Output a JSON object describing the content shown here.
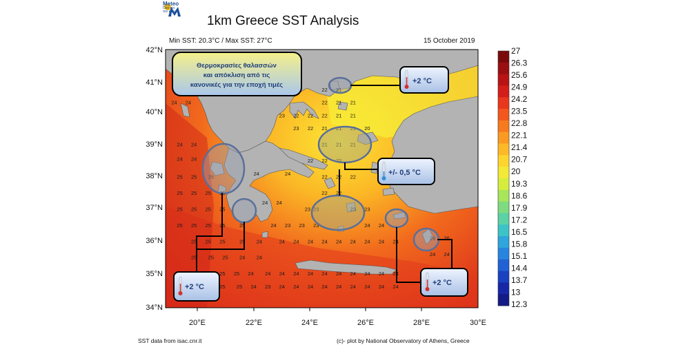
{
  "logo": {
    "name": "Meteo",
    "tagline_1": "Όλα για",
    "tagline_2": "τον καιρό"
  },
  "title": "1km Greece SST Analysis",
  "subtitle": "Min SST: 20.3°C / Max SST: 27°C",
  "date": "15 October 2019",
  "footer": {
    "source": "SST data from isac.cnr.it",
    "credit": "(c)- plot by National Observatory of Athens, Greece"
  },
  "axes": {
    "lat_labels": [
      "42°N",
      "41°N",
      "40°N",
      "39°N",
      "38°N",
      "37°N",
      "36°N",
      "35°N",
      "34°N"
    ],
    "lon_labels": [
      "20°E",
      "22°E",
      "24°E",
      "26°E",
      "28°E",
      "30°E"
    ]
  },
  "colorbar": {
    "labels": [
      "27",
      "26.3",
      "25.6",
      "24.9",
      "24.2",
      "23.5",
      "22.8",
      "22.1",
      "21.4",
      "20.7",
      "20",
      "19.3",
      "18.6",
      "17.9",
      "17.2",
      "16.5",
      "15.8",
      "15.1",
      "14.4",
      "13.7",
      "13",
      "12.3"
    ],
    "colors": [
      "#7a0b0b",
      "#9a1010",
      "#b81414",
      "#d31e1a",
      "#e8371c",
      "#f2581d",
      "#f77a1f",
      "#fb9a22",
      "#fdb927",
      "#fdd52e",
      "#f3e936",
      "#d5ee3e",
      "#a7e55a",
      "#7fdb80",
      "#5ad2a6",
      "#3cc3c8",
      "#2ea5dc",
      "#2785df",
      "#2062d4",
      "#1a42c0",
      "#1628a6",
      "#141a86"
    ]
  },
  "legend_box": {
    "line1": "Θερμοκρασίες θαλασσών",
    "line2": "και απόκλιση από τις",
    "line3": "κανονικές για την εποχή τιμές"
  },
  "callouts": [
    {
      "text": "+2 °C"
    },
    {
      "text": "+/- 0,5 °C"
    },
    {
      "text": "+2 °C"
    },
    {
      "text": "+2 °C"
    }
  ],
  "grid_values": [
    {
      "v": "24",
      "lat": 40.3,
      "lon": 19.3
    },
    {
      "v": "24",
      "lat": 40.3,
      "lon": 19.8
    },
    {
      "v": "24",
      "lat": 39.0,
      "lon": 19.5
    },
    {
      "v": "24",
      "lat": 39.0,
      "lon": 20.0
    },
    {
      "v": "24",
      "lat": 38.55,
      "lon": 19.5
    },
    {
      "v": "24",
      "lat": 38.55,
      "lon": 20.0
    },
    {
      "v": "25",
      "lat": 38.0,
      "lon": 19.5
    },
    {
      "v": "25",
      "lat": 38.0,
      "lon": 20.0
    },
    {
      "v": "25",
      "lat": 38.0,
      "lon": 20.6
    },
    {
      "v": "25",
      "lat": 37.5,
      "lon": 19.5
    },
    {
      "v": "25",
      "lat": 37.5,
      "lon": 20.0
    },
    {
      "v": "25",
      "lat": 37.5,
      "lon": 20.5
    },
    {
      "v": "25",
      "lat": 37.5,
      "lon": 21.0
    },
    {
      "v": "25",
      "lat": 37.0,
      "lon": 19.5
    },
    {
      "v": "25",
      "lat": 37.0,
      "lon": 20.0
    },
    {
      "v": "25",
      "lat": 37.0,
      "lon": 20.5
    },
    {
      "v": "25",
      "lat": 37.0,
      "lon": 21.0
    },
    {
      "v": "25",
      "lat": 36.5,
      "lon": 19.5
    },
    {
      "v": "25",
      "lat": 36.5,
      "lon": 20.0
    },
    {
      "v": "25",
      "lat": 36.5,
      "lon": 20.5
    },
    {
      "v": "25",
      "lat": 36.5,
      "lon": 21.0
    },
    {
      "v": "25",
      "lat": 36.5,
      "lon": 21.7
    },
    {
      "v": "25",
      "lat": 36.0,
      "lon": 20.0
    },
    {
      "v": "25",
      "lat": 36.0,
      "lon": 20.5
    },
    {
      "v": "25",
      "lat": 36.0,
      "lon": 21.0
    },
    {
      "v": "25",
      "lat": 36.0,
      "lon": 21.7
    },
    {
      "v": "24",
      "lat": 36.0,
      "lon": 22.3
    },
    {
      "v": "25",
      "lat": 35.5,
      "lon": 20.0
    },
    {
      "v": "25",
      "lat": 35.5,
      "lon": 20.6
    },
    {
      "v": "25",
      "lat": 35.5,
      "lon": 21.1
    },
    {
      "v": "24",
      "lat": 35.5,
      "lon": 21.7
    },
    {
      "v": "24",
      "lat": 35.5,
      "lon": 22.3
    },
    {
      "v": "25",
      "lat": 35.0,
      "lon": 20.0
    },
    {
      "v": "25",
      "lat": 35.0,
      "lon": 20.5
    },
    {
      "v": "25",
      "lat": 35.0,
      "lon": 21.0
    },
    {
      "v": "25",
      "lat": 35.0,
      "lon": 21.5
    },
    {
      "v": "24",
      "lat": 35.0,
      "lon": 22.0
    },
    {
      "v": "24",
      "lat": 35.0,
      "lon": 22.6
    },
    {
      "v": "25",
      "lat": 34.6,
      "lon": 20.5
    },
    {
      "v": "25",
      "lat": 34.6,
      "lon": 21.0
    },
    {
      "v": "25",
      "lat": 34.6,
      "lon": 21.6
    },
    {
      "v": "24",
      "lat": 34.6,
      "lon": 22.1
    },
    {
      "v": "23",
      "lat": 34.6,
      "lon": 22.6
    },
    {
      "v": "24",
      "lat": 34.6,
      "lon": 23.1
    },
    {
      "v": "24",
      "lat": 34.6,
      "lon": 23.6
    },
    {
      "v": "24",
      "lat": 34.6,
      "lon": 24.1
    },
    {
      "v": "24",
      "lat": 34.6,
      "lon": 24.6
    },
    {
      "v": "24",
      "lat": 34.6,
      "lon": 25.1
    },
    {
      "v": "24",
      "lat": 34.6,
      "lon": 25.6
    },
    {
      "v": "24",
      "lat": 34.6,
      "lon": 26.1
    },
    {
      "v": "24",
      "lat": 34.6,
      "lon": 26.6
    },
    {
      "v": "24",
      "lat": 34.6,
      "lon": 27.1
    },
    {
      "v": "24",
      "lat": 35.0,
      "lon": 23.1
    },
    {
      "v": "24",
      "lat": 35.0,
      "lon": 23.6
    },
    {
      "v": "24",
      "lat": 35.0,
      "lon": 24.1
    },
    {
      "v": "24",
      "lat": 35.0,
      "lon": 24.6
    },
    {
      "v": "24",
      "lat": 35.0,
      "lon": 25.1
    },
    {
      "v": "24",
      "lat": 35.0,
      "lon": 25.6
    },
    {
      "v": "24",
      "lat": 35.0,
      "lon": 26.1
    },
    {
      "v": "24",
      "lat": 35.0,
      "lon": 26.6
    },
    {
      "v": "24",
      "lat": 35.0,
      "lon": 27.1
    },
    {
      "v": "24",
      "lat": 36.0,
      "lon": 23.1
    },
    {
      "v": "24",
      "lat": 36.0,
      "lon": 23.6
    },
    {
      "v": "24",
      "lat": 36.0,
      "lon": 24.1
    },
    {
      "v": "24",
      "lat": 36.0,
      "lon": 24.6
    },
    {
      "v": "24",
      "lat": 36.0,
      "lon": 25.1
    },
    {
      "v": "24",
      "lat": 36.0,
      "lon": 25.6
    },
    {
      "v": "24",
      "lat": 36.0,
      "lon": 26.1
    },
    {
      "v": "24",
      "lat": 36.0,
      "lon": 26.6
    },
    {
      "v": "24",
      "lat": 36.0,
      "lon": 27.1
    },
    {
      "v": "24",
      "lat": 36.5,
      "lon": 22.8
    },
    {
      "v": "23",
      "lat": 36.5,
      "lon": 23.3
    },
    {
      "v": "23",
      "lat": 36.5,
      "lon": 23.8
    },
    {
      "v": "23",
      "lat": 36.5,
      "lon": 24.3
    },
    {
      "v": "24",
      "lat": 36.5,
      "lon": 26.1
    },
    {
      "v": "24",
      "lat": 36.5,
      "lon": 26.6
    },
    {
      "v": "23",
      "lat": 37.0,
      "lon": 24.0
    },
    {
      "v": "23",
      "lat": 37.0,
      "lon": 24.3
    },
    {
      "v": "23",
      "lat": 37.0,
      "lon": 25.6
    },
    {
      "v": "23",
      "lat": 37.0,
      "lon": 26.1
    },
    {
      "v": "22",
      "lat": 37.5,
      "lon": 24.6
    },
    {
      "v": "22",
      "lat": 37.5,
      "lon": 25.1
    },
    {
      "v": "22",
      "lat": 38.0,
      "lon": 24.6
    },
    {
      "v": "22",
      "lat": 38.0,
      "lon": 25.1
    },
    {
      "v": "22",
      "lat": 38.0,
      "lon": 25.6
    },
    {
      "v": "22",
      "lat": 38.5,
      "lon": 24.1
    },
    {
      "v": "22",
      "lat": 38.5,
      "lon": 24.6
    },
    {
      "v": "22",
      "lat": 38.5,
      "lon": 25.1
    },
    {
      "v": "21",
      "lat": 39.0,
      "lon": 24.6
    },
    {
      "v": "21",
      "lat": 39.0,
      "lon": 25.1
    },
    {
      "v": "21",
      "lat": 39.0,
      "lon": 25.6
    },
    {
      "v": "23",
      "lat": 39.5,
      "lon": 23.6
    },
    {
      "v": "22",
      "lat": 39.5,
      "lon": 24.1
    },
    {
      "v": "21",
      "lat": 39.5,
      "lon": 24.6
    },
    {
      "v": "21",
      "lat": 39.5,
      "lon": 25.1
    },
    {
      "v": "21",
      "lat": 39.5,
      "lon": 25.6
    },
    {
      "v": "20",
      "lat": 39.5,
      "lon": 26.1
    },
    {
      "v": "23",
      "lat": 39.9,
      "lon": 23.1
    },
    {
      "v": "22",
      "lat": 39.9,
      "lon": 23.6
    },
    {
      "v": "22",
      "lat": 39.9,
      "lon": 24.1
    },
    {
      "v": "22",
      "lat": 39.9,
      "lon": 24.6
    },
    {
      "v": "21",
      "lat": 39.9,
      "lon": 25.1
    },
    {
      "v": "21",
      "lat": 39.9,
      "lon": 25.6
    },
    {
      "v": "22",
      "lat": 40.3,
      "lon": 24.6
    },
    {
      "v": "21",
      "lat": 40.3,
      "lon": 25.1
    },
    {
      "v": "21",
      "lat": 40.3,
      "lon": 25.6
    },
    {
      "v": "22",
      "lat": 40.7,
      "lon": 24.6
    },
    {
      "v": "21",
      "lat": 40.7,
      "lon": 25.1
    },
    {
      "v": "24",
      "lat": 38.1,
      "lon": 22.2
    },
    {
      "v": "24",
      "lat": 38.1,
      "lon": 23.3
    },
    {
      "v": "24",
      "lat": 37.2,
      "lon": 22.5
    },
    {
      "v": "24",
      "lat": 37.2,
      "lon": 23.0
    },
    {
      "v": "26",
      "lat": 36.1,
      "lon": 28.4
    },
    {
      "v": "26",
      "lat": 36.1,
      "lon": 28.9
    },
    {
      "v": "24",
      "lat": 35.6,
      "lon": 28.4
    },
    {
      "v": "24",
      "lat": 35.6,
      "lon": 28.9
    }
  ]
}
